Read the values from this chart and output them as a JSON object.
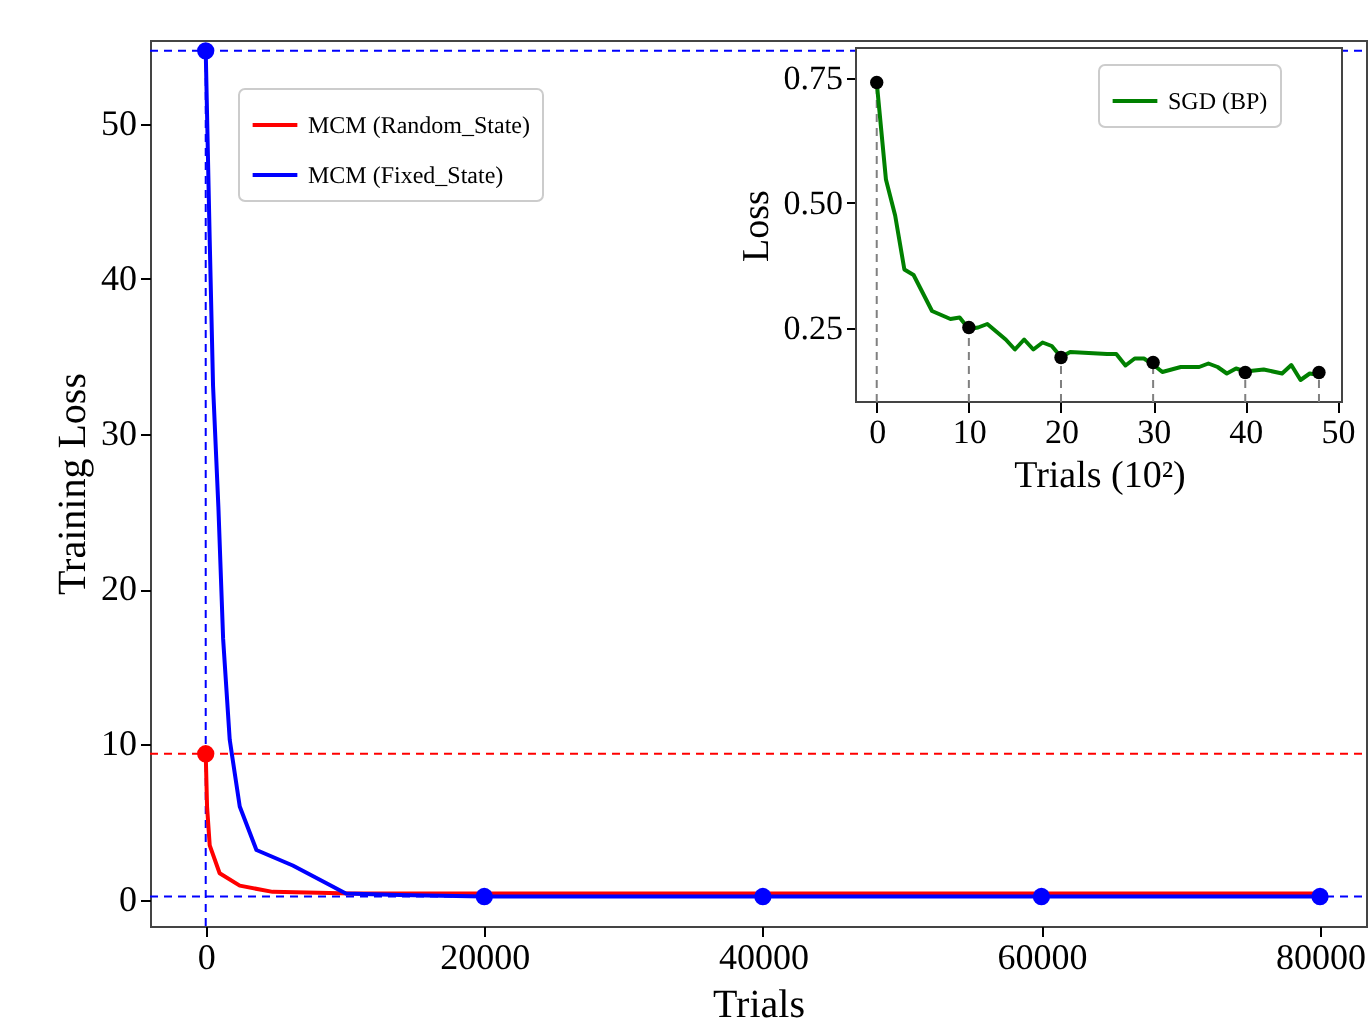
{
  "chart_data": [
    {
      "type": "line",
      "xlabel": "Trials",
      "ylabel": "Training Loss",
      "xlim": [
        -4000,
        83300
      ],
      "ylim": [
        -1.7,
        55.4
      ],
      "xticks": [
        0,
        20000,
        40000,
        60000,
        80000
      ],
      "yticks": [
        0,
        10,
        20,
        30,
        40,
        50
      ],
      "grid": false,
      "legend": "top left",
      "series": [
        {
          "name": "MCM (Random_State)",
          "color": "#ff0000",
          "x": [
            0,
            96,
            287,
            1000,
            2443,
            4800,
            10500,
            80000
          ],
          "values": [
            9.4,
            6.0,
            3.5,
            1.7,
            0.9,
            0.5,
            0.4,
            0.4
          ]
        },
        {
          "name": "MCM (Fixed_State)",
          "color": "#0000ff",
          "x": [
            0,
            287,
            527,
            910,
            1250,
            1724,
            2443,
            3640,
            6250,
            8160,
            10060,
            13900,
            20000,
            40000,
            60000,
            80000
          ],
          "values": [
            54.7,
            42.5,
            33.1,
            25.3,
            16.8,
            10.3,
            6.0,
            3.2,
            2.2,
            1.3,
            0.4,
            0.3,
            0.2,
            0.2,
            0.2,
            0.2
          ]
        },
        {
          "type": "scatter",
          "marker": "circle",
          "color": "#ff0000",
          "x": [
            0
          ],
          "values": [
            9.4
          ]
        },
        {
          "type": "scatter",
          "marker": "circle",
          "color": "#0000ff",
          "x": [
            0,
            20000,
            40000,
            60000,
            80000
          ],
          "values": [
            54.7,
            0.2,
            0.2,
            0.2,
            0.2
          ]
        }
      ],
      "ref_lines": [
        {
          "axis": "x",
          "value": 0,
          "color": "#0000ff",
          "line_style": "dashed"
        },
        {
          "axis": "y",
          "value": 54.7,
          "color": "#0000ff",
          "line_style": "dashed"
        },
        {
          "axis": "y",
          "value": 9.4,
          "color": "#ff0000",
          "line_style": "dashed"
        },
        {
          "axis": "y",
          "value": 0.2,
          "color": "#0000ff",
          "line_style": "dashed"
        }
      ]
    },
    {
      "type": "line",
      "xlabel": "Trials (10²)",
      "ylabel": "Loss",
      "xlim": [
        -2.25,
        50.5
      ],
      "ylim": [
        0.101,
        0.809
      ],
      "xticks": [
        0,
        10,
        20,
        30,
        40,
        50
      ],
      "yticks": [
        0.25,
        {
          "value": 0.5,
          "label": "0.50"
        },
        0.75
      ],
      "grid": false,
      "legend": "top right",
      "series": [
        {
          "name": "SGD (BP)",
          "color": "#008000",
          "x": [
            0,
            1,
            2,
            3,
            4,
            6,
            8,
            9,
            10,
            11,
            12,
            14,
            15,
            16,
            17,
            18,
            19,
            20,
            21,
            25,
            26,
            27,
            28,
            29,
            30,
            31,
            33,
            35,
            36,
            37,
            38,
            39,
            40,
            42,
            44,
            45,
            46,
            47,
            48
          ],
          "values": [
            0.74,
            0.546,
            0.474,
            0.366,
            0.355,
            0.283,
            0.267,
            0.27,
            0.247,
            0.25,
            0.257,
            0.226,
            0.206,
            0.226,
            0.206,
            0.22,
            0.213,
            0.191,
            0.201,
            0.197,
            0.197,
            0.174,
            0.188,
            0.188,
            0.176,
            0.161,
            0.171,
            0.171,
            0.178,
            0.171,
            0.158,
            0.168,
            0.162,
            0.166,
            0.158,
            0.175,
            0.145,
            0.158,
            0.155
          ]
        },
        {
          "type": "scatter",
          "marker": "circle",
          "color": "#000000",
          "x": [
            0,
            10,
            20,
            30,
            40,
            48
          ],
          "values": [
            0.74,
            0.25,
            0.19,
            0.18,
            0.16,
            0.16
          ]
        }
      ],
      "ref_lines": [
        {
          "axis": "x",
          "value": 0,
          "color": "#808080",
          "line_style": "dashed"
        },
        {
          "axis": "x",
          "value": 10,
          "color": "#808080",
          "line_style": "dashed"
        },
        {
          "axis": "x",
          "value": 20,
          "color": "#808080",
          "line_style": "dashed"
        },
        {
          "axis": "x",
          "value": 30,
          "color": "#808080",
          "line_style": "dashed"
        },
        {
          "axis": "x",
          "value": 40,
          "color": "#808080",
          "line_style": "dashed"
        },
        {
          "axis": "x",
          "value": 48,
          "color": "#808080",
          "line_style": "dashed"
        }
      ]
    }
  ]
}
